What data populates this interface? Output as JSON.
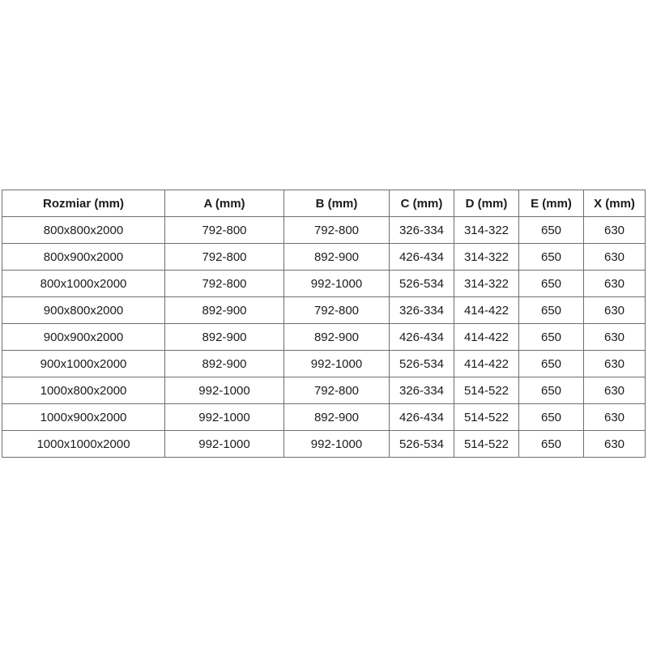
{
  "table": {
    "headers": [
      "Rozmiar (mm)",
      "A (mm)",
      "B (mm)",
      "C (mm)",
      "D (mm)",
      "E (mm)",
      "X (mm)"
    ],
    "rows": [
      [
        "800x800x2000",
        "792-800",
        "792-800",
        "326-334",
        "314-322",
        "650",
        "630"
      ],
      [
        "800x900x2000",
        "792-800",
        "892-900",
        "426-434",
        "314-322",
        "650",
        "630"
      ],
      [
        "800x1000x2000",
        "792-800",
        "992-1000",
        "526-534",
        "314-322",
        "650",
        "630"
      ],
      [
        "900x800x2000",
        "892-900",
        "792-800",
        "326-334",
        "414-422",
        "650",
        "630"
      ],
      [
        "900x900x2000",
        "892-900",
        "892-900",
        "426-434",
        "414-422",
        "650",
        "630"
      ],
      [
        "900x1000x2000",
        "892-900",
        "992-1000",
        "526-534",
        "414-422",
        "650",
        "630"
      ],
      [
        "1000x800x2000",
        "992-1000",
        "792-800",
        "326-334",
        "514-522",
        "650",
        "630"
      ],
      [
        "1000x900x2000",
        "992-1000",
        "892-900",
        "426-434",
        "514-522",
        "650",
        "630"
      ],
      [
        "1000x1000x2000",
        "992-1000",
        "992-1000",
        "526-534",
        "514-522",
        "650",
        "630"
      ]
    ],
    "colors": {
      "border": "#6e6e6e",
      "text": "#1c1c1c",
      "background": "#ffffff"
    }
  },
  "chart_data": {
    "type": "table",
    "title": "",
    "columns": [
      "Rozmiar (mm)",
      "A (mm)",
      "B (mm)",
      "C (mm)",
      "D (mm)",
      "E (mm)",
      "X (mm)"
    ],
    "rows": [
      [
        "800x800x2000",
        "792-800",
        "792-800",
        "326-334",
        "314-322",
        "650",
        "630"
      ],
      [
        "800x900x2000",
        "792-800",
        "892-900",
        "426-434",
        "314-322",
        "650",
        "630"
      ],
      [
        "800x1000x2000",
        "792-800",
        "992-1000",
        "526-534",
        "314-322",
        "650",
        "630"
      ],
      [
        "900x800x2000",
        "892-900",
        "792-800",
        "326-334",
        "414-422",
        "650",
        "630"
      ],
      [
        "900x900x2000",
        "892-900",
        "892-900",
        "426-434",
        "414-422",
        "650",
        "630"
      ],
      [
        "900x1000x2000",
        "892-900",
        "992-1000",
        "526-534",
        "414-422",
        "650",
        "630"
      ],
      [
        "1000x800x2000",
        "992-1000",
        "792-800",
        "326-334",
        "514-522",
        "650",
        "630"
      ],
      [
        "1000x900x2000",
        "992-1000",
        "892-900",
        "426-434",
        "514-522",
        "650",
        "630"
      ],
      [
        "1000x1000x2000",
        "992-1000",
        "992-1000",
        "526-534",
        "514-522",
        "650",
        "630"
      ]
    ]
  }
}
